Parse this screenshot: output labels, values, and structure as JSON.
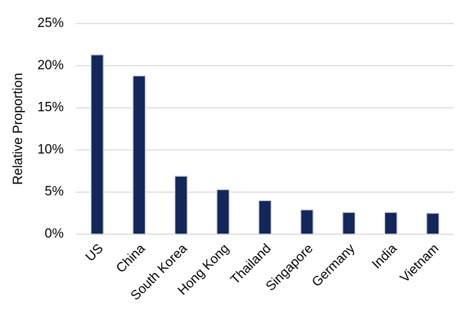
{
  "chart_data": {
    "type": "bar",
    "y_label": "Relative Proportion",
    "categories": [
      "US",
      "China",
      "South Korea",
      "Hong Kong",
      "Thailand",
      "Singapore",
      "Germany",
      "India",
      "Vietnam"
    ],
    "values": [
      21.3,
      18.8,
      6.9,
      5.3,
      4.0,
      2.9,
      2.6,
      2.6,
      2.5
    ],
    "color": "#13275a",
    "ylim": [
      0,
      25
    ],
    "yticks": [
      {
        "value": 0,
        "label": "0%"
      },
      {
        "value": 5,
        "label": "5%"
      },
      {
        "value": 10,
        "label": "10%"
      },
      {
        "value": 15,
        "label": "15%"
      },
      {
        "value": 20,
        "label": "20%"
      },
      {
        "value": 25,
        "label": "25%"
      }
    ],
    "grid": true
  }
}
